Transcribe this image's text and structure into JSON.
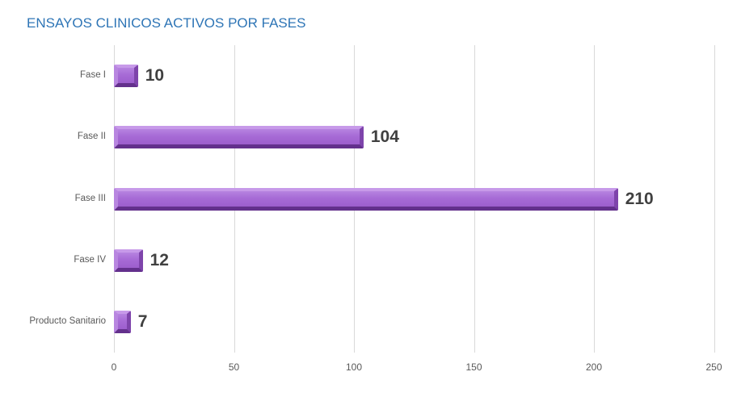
{
  "title": "ENSAYOS CLINICOS ACTIVOS POR FASES",
  "colors": {
    "title": "#2E75B6",
    "bar_main": "#A76BD6",
    "bar_gradient_top": "#B683E0",
    "bar_gradient_bottom": "#9D5ECD",
    "bar_edge_top": "#C79AE9",
    "bar_edge_left": "#B886E0",
    "bar_edge_right": "#7E44AB",
    "bar_edge_bottom": "#63308C",
    "gridline": "#D9D9D9",
    "axis_label": "#595959",
    "value_label": "#404040"
  },
  "chart_data": {
    "type": "bar",
    "orientation": "horizontal",
    "title": "ENSAYOS CLINICOS ACTIVOS POR FASES",
    "categories": [
      "Fase I",
      "Fase II",
      "Fase III",
      "Fase IV",
      "Producto Sanitario"
    ],
    "values": [
      10,
      104,
      210,
      12,
      7
    ],
    "xlabel": "",
    "ylabel": "",
    "xlim": [
      0,
      250
    ],
    "x_ticks": [
      0,
      50,
      100,
      150,
      200,
      250
    ],
    "grid": true,
    "legend": false
  }
}
